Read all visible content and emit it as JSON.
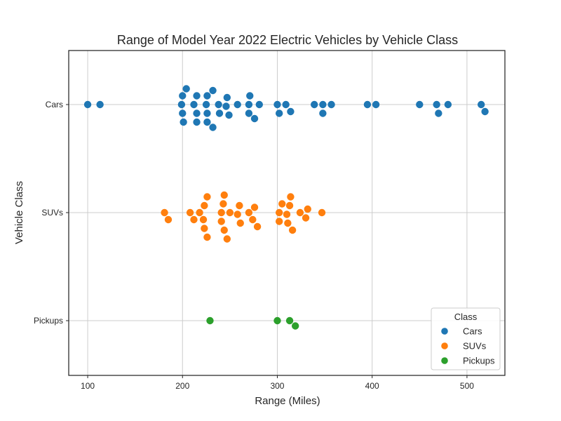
{
  "chart_data": {
    "type": "scatter",
    "subtype": "swarm",
    "title": "Range of Model Year 2022 Electric Vehicles by Vehicle Class",
    "xlabel": "Range (Miles)",
    "ylabel": "Vehicle Class",
    "xlim": [
      80,
      540
    ],
    "xticks": [
      100,
      200,
      300,
      400,
      500
    ],
    "xtick_labels": [
      "100",
      "200",
      "300",
      "400",
      "500"
    ],
    "categories": [
      "Cars",
      "SUVs",
      "Pickups"
    ],
    "grid": true,
    "legend": {
      "title": "Class",
      "placement": "lower-right",
      "entries": [
        "Cars",
        "SUVs",
        "Pickups"
      ]
    },
    "series": [
      {
        "name": "Cars",
        "color": "#1f77b4",
        "values": [
          100,
          113,
          199,
          200,
          200,
          201,
          204,
          212,
          215,
          215,
          215,
          225,
          226,
          226,
          226,
          232,
          232,
          238,
          239,
          246,
          247,
          249,
          258,
          270,
          270,
          271,
          276,
          281,
          300,
          302,
          309,
          314,
          339,
          348,
          348,
          357,
          395,
          404,
          450,
          468,
          470,
          480,
          515,
          519
        ]
      },
      {
        "name": "SUVs",
        "color": "#ff7f0e",
        "values": [
          181,
          185,
          208,
          212,
          218,
          222,
          223,
          223,
          226,
          226,
          241,
          241,
          243,
          244,
          244,
          247,
          250,
          258,
          260,
          261,
          270,
          274,
          276,
          279,
          302,
          302,
          305,
          310,
          311,
          313,
          314,
          316,
          324,
          330,
          332,
          347
        ]
      },
      {
        "name": "Pickups",
        "color": "#2ca02c",
        "values": [
          229,
          300,
          313,
          319
        ]
      }
    ]
  }
}
